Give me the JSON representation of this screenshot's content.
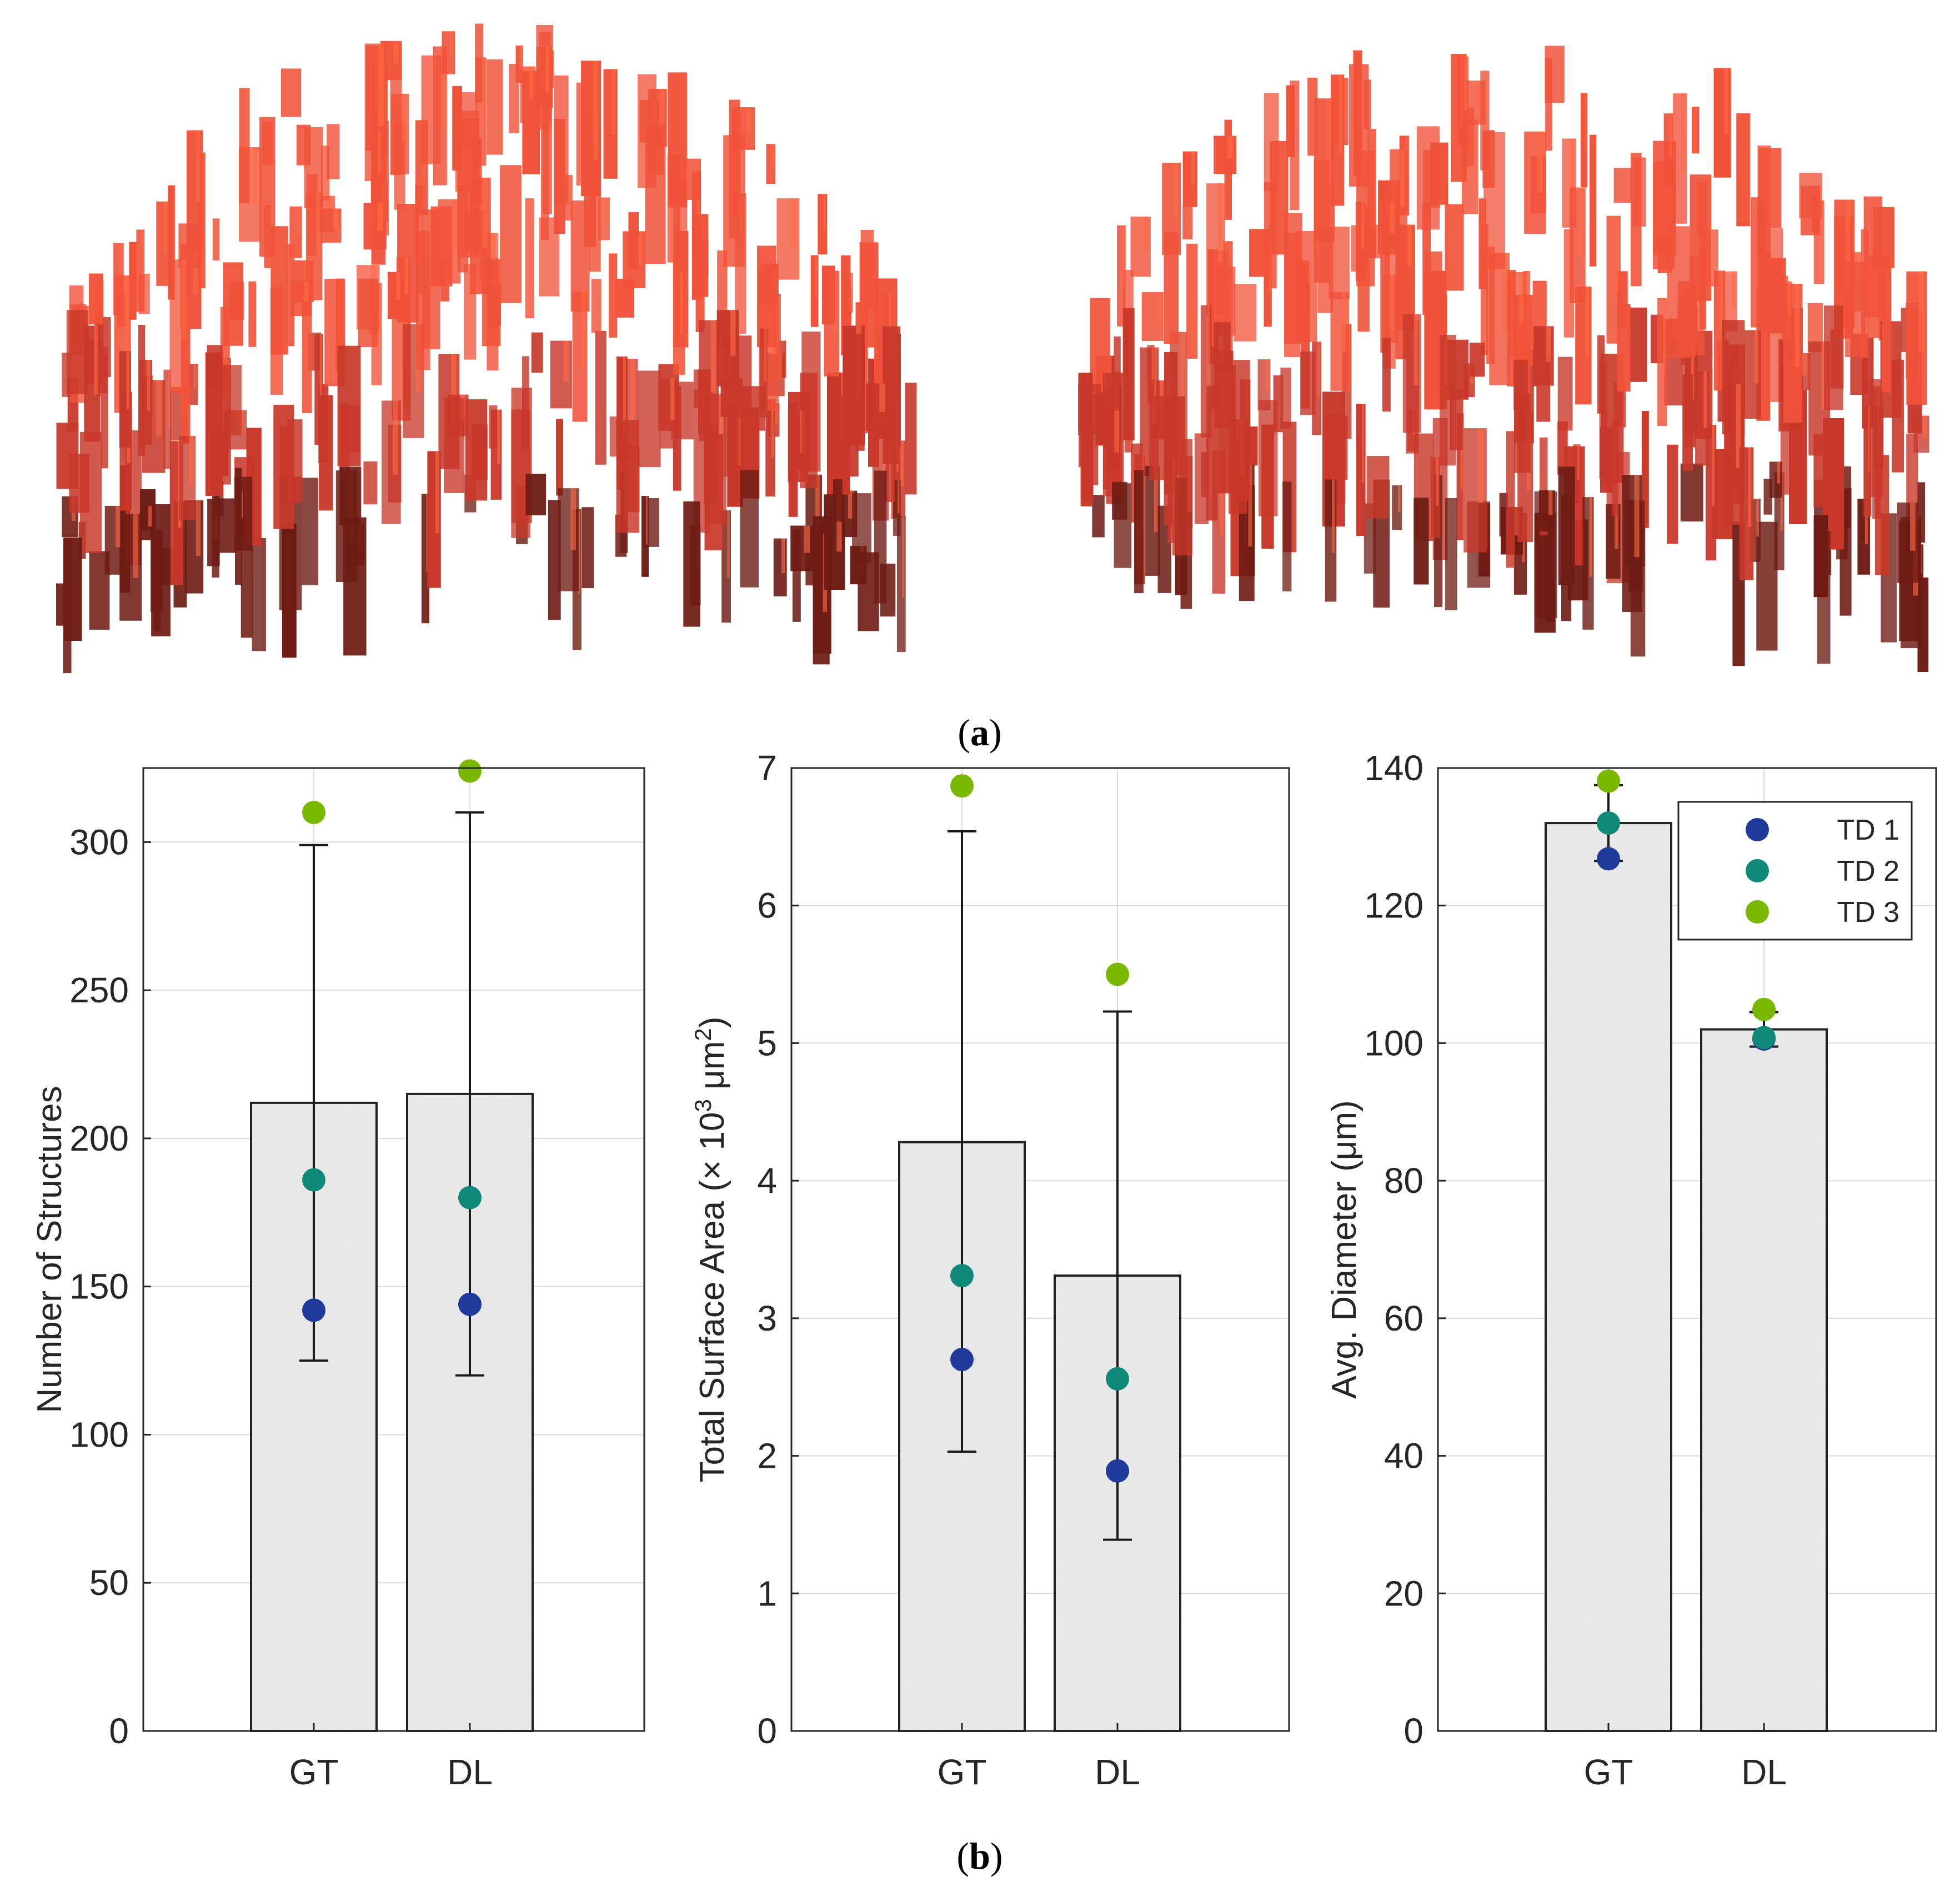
{
  "panel_labels": {
    "a": "a",
    "b": "b"
  },
  "colors": {
    "td1": "#1f3a9a",
    "td2": "#0f8a7a",
    "td3": "#7ab800",
    "bar_fill": "#ececec",
    "bar_edge": "#222222",
    "grid": "#dcdcdc",
    "structure_light": "#ff6a45",
    "structure_dark": "#5a1410"
  },
  "chart_data": [
    {
      "type": "bar",
      "title": "",
      "xlabel": "",
      "ylabel": "Number of Structures",
      "categories": [
        "GT",
        "DL"
      ],
      "ylim": [
        0,
        325
      ],
      "yticks": [
        0,
        50,
        100,
        150,
        200,
        250,
        300
      ],
      "bar_values": [
        212,
        215
      ],
      "error_low": [
        125,
        120
      ],
      "error_high": [
        299,
        310
      ],
      "series": [
        {
          "name": "TD 1",
          "values": [
            142,
            144
          ]
        },
        {
          "name": "TD 2",
          "values": [
            186,
            180
          ]
        },
        {
          "name": "TD 3",
          "values": [
            310,
            324
          ]
        }
      ],
      "legend": null
    },
    {
      "type": "bar",
      "title": "",
      "xlabel": "",
      "ylabel": "Total Surface Area (× 10",
      "ylabel_sup1": "3",
      "ylabel_unit": " μm",
      "ylabel_sup2": "2",
      "ylabel_end": ")",
      "categories": [
        "GT",
        "DL"
      ],
      "ylim": [
        0,
        7
      ],
      "yticks": [
        0,
        1,
        2,
        3,
        4,
        5,
        6,
        7
      ],
      "bar_values": [
        4.28,
        3.31
      ],
      "error_low": [
        2.03,
        1.39
      ],
      "error_high": [
        6.54,
        5.23
      ],
      "series": [
        {
          "name": "TD 1",
          "values": [
            2.7,
            1.89
          ]
        },
        {
          "name": "TD 2",
          "values": [
            3.31,
            2.56
          ]
        },
        {
          "name": "TD 3",
          "values": [
            6.87,
            5.5
          ]
        }
      ],
      "legend": null
    },
    {
      "type": "bar",
      "title": "",
      "xlabel": "",
      "ylabel": "Avg. Diameter (μm)",
      "categories": [
        "GT",
        "DL"
      ],
      "ylim": [
        0,
        140
      ],
      "yticks": [
        0,
        20,
        40,
        60,
        80,
        100,
        120,
        140
      ],
      "bar_values": [
        132,
        102
      ],
      "error_low": [
        126.5,
        99.5
      ],
      "error_high": [
        137.5,
        104.5
      ],
      "series": [
        {
          "name": "TD 1",
          "values": [
            126.8,
            100.6
          ]
        },
        {
          "name": "TD 2",
          "values": [
            132,
            100.8
          ]
        },
        {
          "name": "TD 3",
          "values": [
            138.1,
            104.9
          ]
        }
      ],
      "legend": "top-right"
    }
  ]
}
